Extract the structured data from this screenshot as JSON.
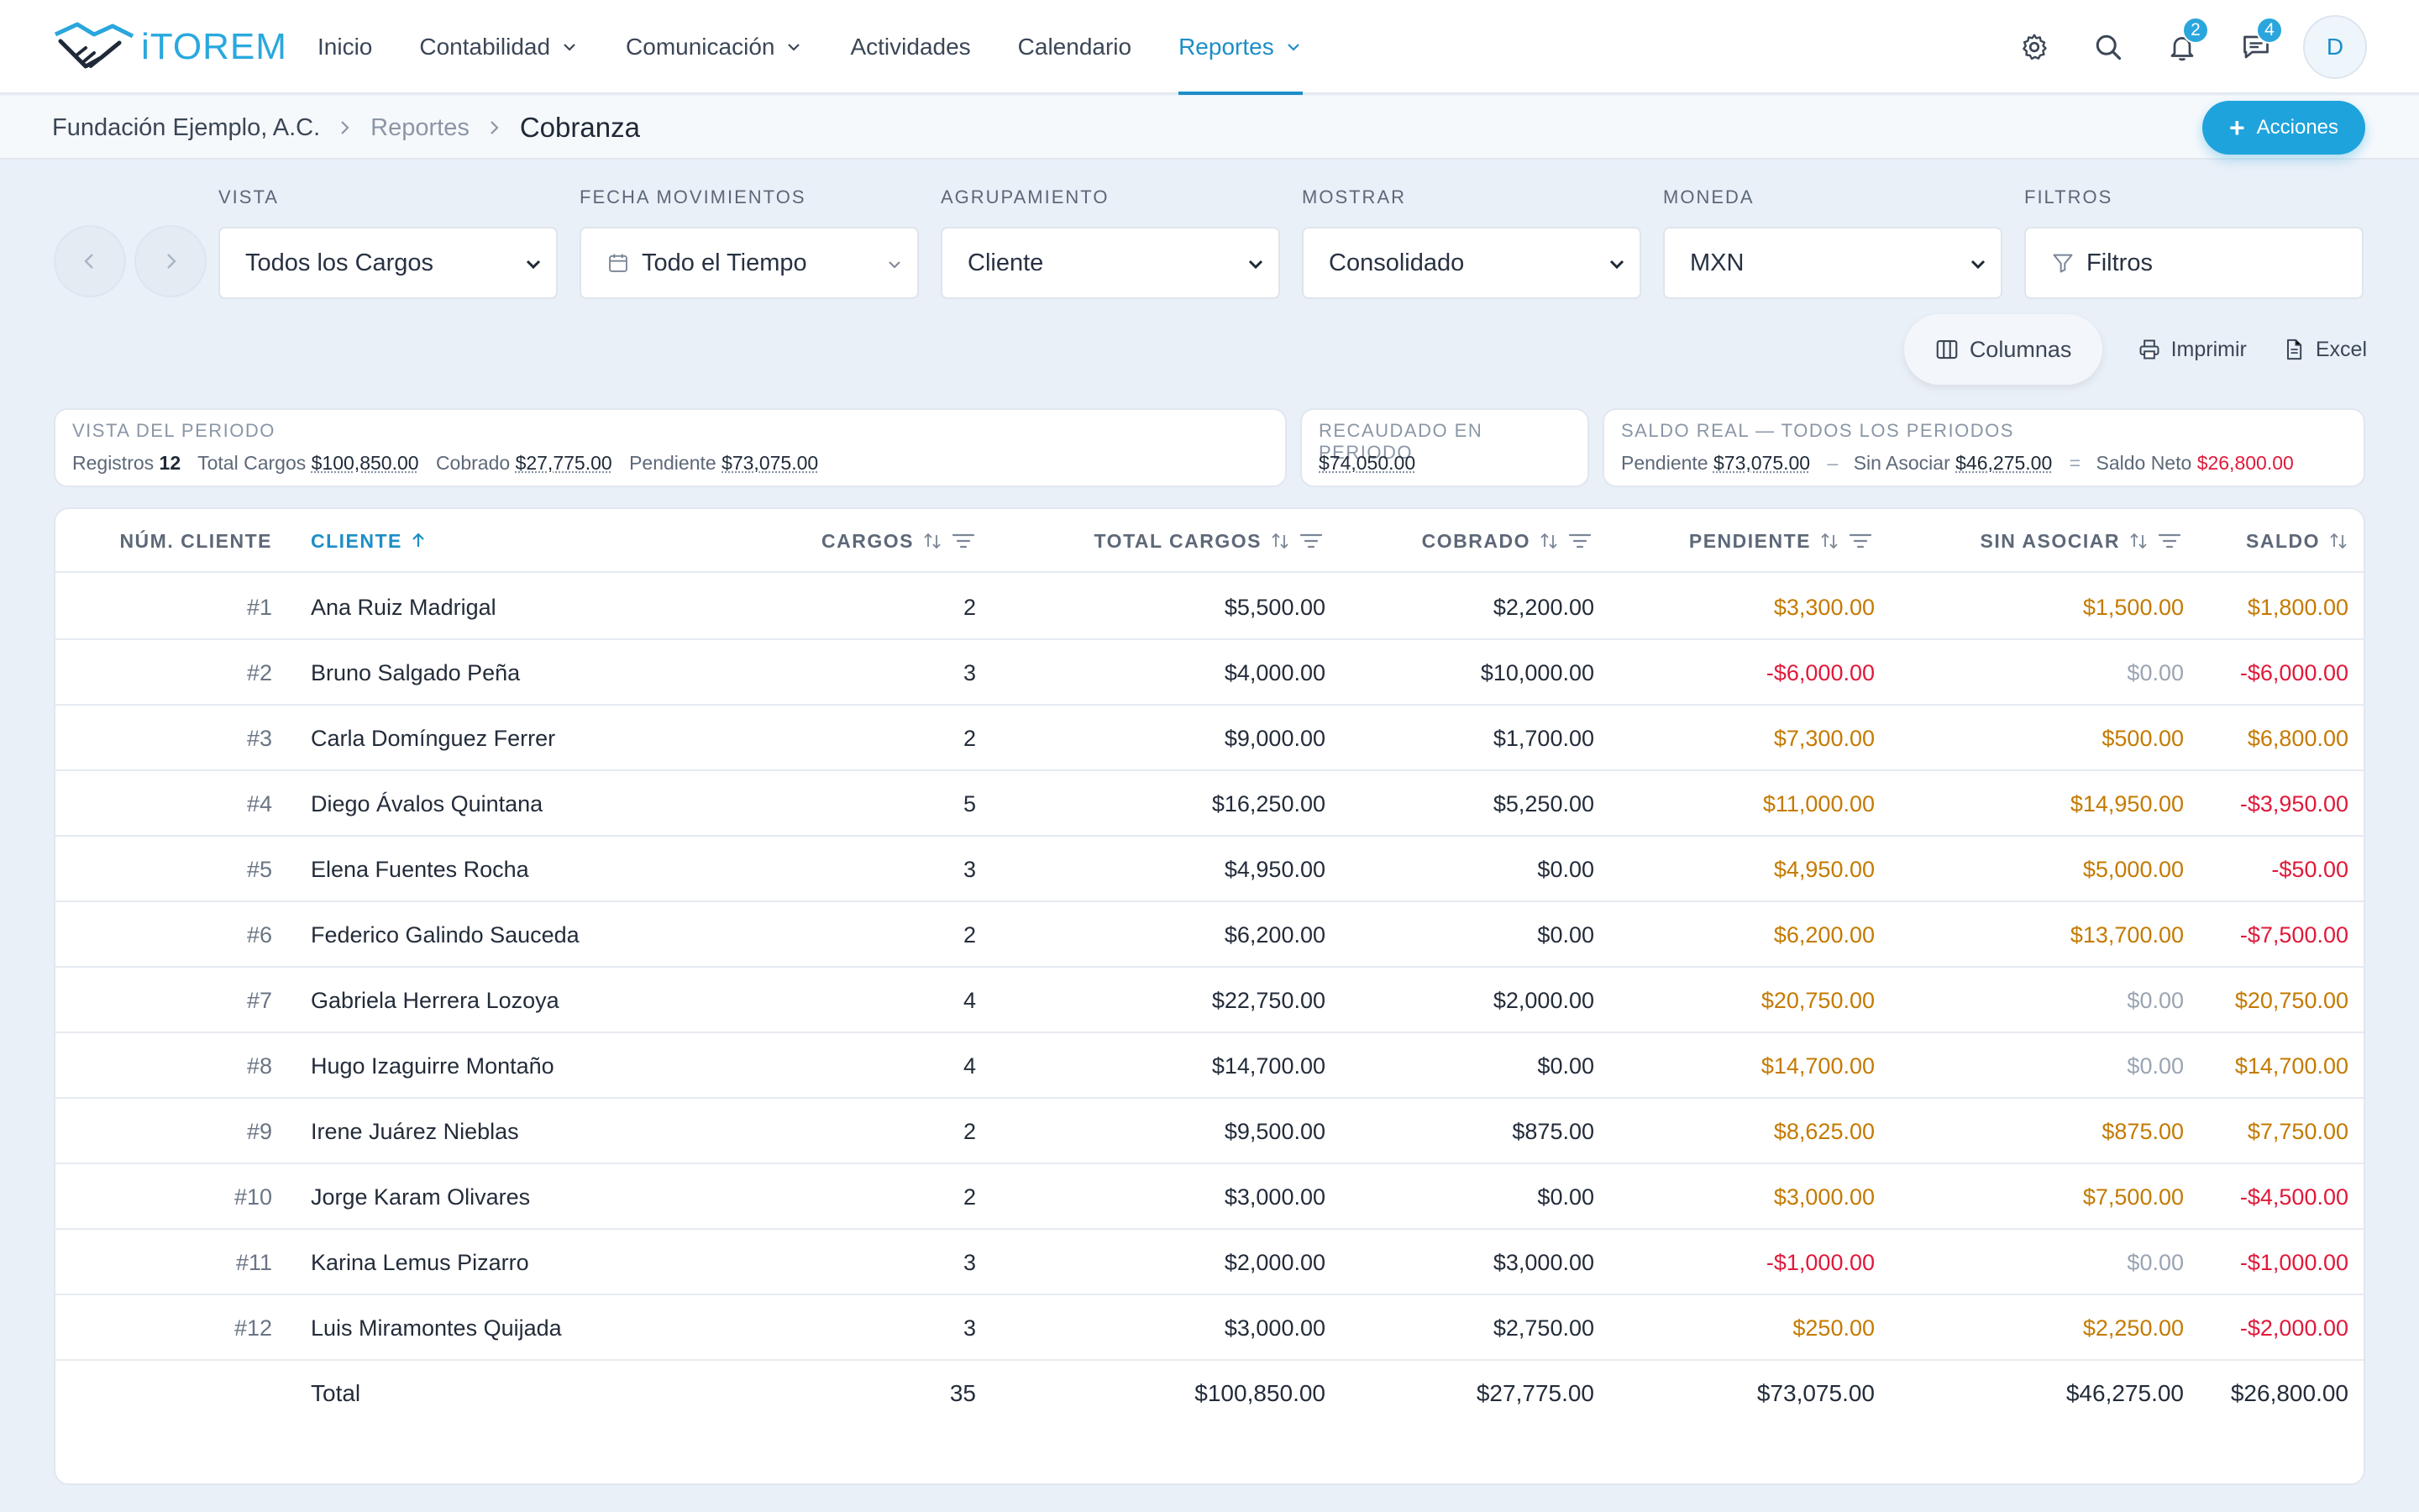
{
  "app": {
    "logo_text": "iTOREM"
  },
  "nav": {
    "items": [
      {
        "label": "Inicio",
        "dropdown": false,
        "active": false
      },
      {
        "label": "Contabilidad",
        "dropdown": true,
        "active": false
      },
      {
        "label": "Comunicación",
        "dropdown": true,
        "active": false
      },
      {
        "label": "Actividades",
        "dropdown": false,
        "active": false
      },
      {
        "label": "Calendario",
        "dropdown": false,
        "active": false
      },
      {
        "label": "Reportes",
        "dropdown": true,
        "active": true
      }
    ],
    "notifications_count": "2",
    "messages_count": "4",
    "avatar_initial": "D"
  },
  "breadcrumb": {
    "org": "Fundación Ejemplo, A.C.",
    "section": "Reportes",
    "current": "Cobranza",
    "actions_label": "Acciones"
  },
  "filters": {
    "vista": {
      "label": "VISTA",
      "value": "Todos los Cargos"
    },
    "fecha": {
      "label": "FECHA MOVIMIENTOS",
      "value": "Todo el Tiempo"
    },
    "agrupamiento": {
      "label": "AGRUPAMIENTO",
      "value": "Cliente"
    },
    "mostrar": {
      "label": "MOSTRAR",
      "value": "Consolidado"
    },
    "moneda": {
      "label": "MONEDA",
      "value": "MXN"
    },
    "filtros": {
      "label": "FILTROS",
      "value": "Filtros"
    }
  },
  "toolbar": {
    "columns": "Columnas",
    "print": "Imprimir",
    "excel": "Excel"
  },
  "summary": {
    "periodo": {
      "title": "VISTA DEL PERIODO",
      "registros_label": "Registros",
      "registros": "12",
      "cargos_label": "Total Cargos",
      "cargos": "$100,850.00",
      "cobrado_label": "Cobrado",
      "cobrado": "$27,775.00",
      "pendiente_label": "Pendiente",
      "pendiente": "$73,075.00"
    },
    "recaudado": {
      "title": "RECAUDADO EN PERIODO",
      "value": "$74,050.00"
    },
    "saldo_real": {
      "title": "SALDO REAL — TODOS LOS PERIODOS",
      "pendiente_label": "Pendiente",
      "pendiente": "$73,075.00",
      "minus": "–",
      "sin_asociar_label": "Sin Asociar",
      "sin_asociar": "$46,275.00",
      "equals": "=",
      "neto_label": "Saldo Neto",
      "neto": "$26,800.00"
    }
  },
  "table": {
    "headers": {
      "num": "NÚM. CLIENTE",
      "cliente": "CLIENTE",
      "cargos": "CARGOS",
      "total_cargos": "TOTAL CARGOS",
      "cobrado": "COBRADO",
      "pendiente": "PENDIENTE",
      "sin_asociar": "SIN ASOCIAR",
      "saldo": "SALDO"
    },
    "rows": [
      {
        "num": "#1",
        "cliente": "Ana Ruiz Madrigal",
        "cargos": "2",
        "total": "$5,500.00",
        "cobrado": "$2,200.00",
        "pendiente": "$3,300.00",
        "sin_asociar": "$1,500.00",
        "saldo": "$1,800.00",
        "pendiente_tone": "amber",
        "sin_tone": "amber",
        "saldo_tone": "amber"
      },
      {
        "num": "#2",
        "cliente": "Bruno Salgado Peña",
        "cargos": "3",
        "total": "$4,000.00",
        "cobrado": "$10,000.00",
        "pendiente": "-$6,000.00",
        "sin_asociar": "$0.00",
        "saldo": "-$6,000.00",
        "pendiente_tone": "red",
        "sin_tone": "muted",
        "saldo_tone": "red"
      },
      {
        "num": "#3",
        "cliente": "Carla Domínguez Ferrer",
        "cargos": "2",
        "total": "$9,000.00",
        "cobrado": "$1,700.00",
        "pendiente": "$7,300.00",
        "sin_asociar": "$500.00",
        "saldo": "$6,800.00",
        "pendiente_tone": "amber",
        "sin_tone": "amber",
        "saldo_tone": "amber"
      },
      {
        "num": "#4",
        "cliente": "Diego Ávalos Quintana",
        "cargos": "5",
        "total": "$16,250.00",
        "cobrado": "$5,250.00",
        "pendiente": "$11,000.00",
        "sin_asociar": "$14,950.00",
        "saldo": "-$3,950.00",
        "pendiente_tone": "amber",
        "sin_tone": "amber",
        "saldo_tone": "red"
      },
      {
        "num": "#5",
        "cliente": "Elena Fuentes Rocha",
        "cargos": "3",
        "total": "$4,950.00",
        "cobrado": "$0.00",
        "pendiente": "$4,950.00",
        "sin_asociar": "$5,000.00",
        "saldo": "-$50.00",
        "pendiente_tone": "amber",
        "sin_tone": "amber",
        "saldo_tone": "red"
      },
      {
        "num": "#6",
        "cliente": "Federico Galindo Sauceda",
        "cargos": "2",
        "total": "$6,200.00",
        "cobrado": "$0.00",
        "pendiente": "$6,200.00",
        "sin_asociar": "$13,700.00",
        "saldo": "-$7,500.00",
        "pendiente_tone": "amber",
        "sin_tone": "amber",
        "saldo_tone": "red"
      },
      {
        "num": "#7",
        "cliente": "Gabriela Herrera Lozoya",
        "cargos": "4",
        "total": "$22,750.00",
        "cobrado": "$2,000.00",
        "pendiente": "$20,750.00",
        "sin_asociar": "$0.00",
        "saldo": "$20,750.00",
        "pendiente_tone": "amber",
        "sin_tone": "muted",
        "saldo_tone": "amber"
      },
      {
        "num": "#8",
        "cliente": "Hugo Izaguirre Montaño",
        "cargos": "4",
        "total": "$14,700.00",
        "cobrado": "$0.00",
        "pendiente": "$14,700.00",
        "sin_asociar": "$0.00",
        "saldo": "$14,700.00",
        "pendiente_tone": "amber",
        "sin_tone": "muted",
        "saldo_tone": "amber"
      },
      {
        "num": "#9",
        "cliente": "Irene Juárez Nieblas",
        "cargos": "2",
        "total": "$9,500.00",
        "cobrado": "$875.00",
        "pendiente": "$8,625.00",
        "sin_asociar": "$875.00",
        "saldo": "$7,750.00",
        "pendiente_tone": "amber",
        "sin_tone": "amber",
        "saldo_tone": "amber"
      },
      {
        "num": "#10",
        "cliente": "Jorge Karam Olivares",
        "cargos": "2",
        "total": "$3,000.00",
        "cobrado": "$0.00",
        "pendiente": "$3,000.00",
        "sin_asociar": "$7,500.00",
        "saldo": "-$4,500.00",
        "pendiente_tone": "amber",
        "sin_tone": "amber",
        "saldo_tone": "red"
      },
      {
        "num": "#11",
        "cliente": "Karina Lemus Pizarro",
        "cargos": "3",
        "total": "$2,000.00",
        "cobrado": "$3,000.00",
        "pendiente": "-$1,000.00",
        "sin_asociar": "$0.00",
        "saldo": "-$1,000.00",
        "pendiente_tone": "red",
        "sin_tone": "muted",
        "saldo_tone": "red"
      },
      {
        "num": "#12",
        "cliente": "Luis Miramontes Quijada",
        "cargos": "3",
        "total": "$3,000.00",
        "cobrado": "$2,750.00",
        "pendiente": "$250.00",
        "sin_asociar": "$2,250.00",
        "saldo": "-$2,000.00",
        "pendiente_tone": "amber",
        "sin_tone": "amber",
        "saldo_tone": "red"
      }
    ],
    "totals": {
      "label": "Total",
      "cargos": "35",
      "total": "$100,850.00",
      "cobrado": "$27,775.00",
      "pendiente": "$73,075.00",
      "sin_asociar": "$46,275.00",
      "saldo": "$26,800.00"
    }
  },
  "colors": {
    "accent": "#1c8ec7",
    "amber": "#c47a00",
    "red": "#e0193a",
    "muted": "#9aa5b3"
  }
}
